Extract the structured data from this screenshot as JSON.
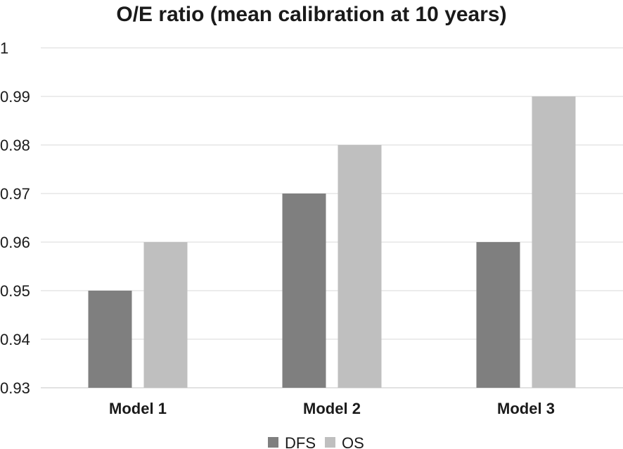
{
  "chart_data": {
    "type": "bar",
    "title": "O/E ratio (mean calibration at 10 years)",
    "xlabel": "",
    "ylabel": "",
    "categories": [
      "Model 1",
      "Model 2",
      "Model 3"
    ],
    "series": [
      {
        "name": "DFS",
        "values": [
          0.95,
          0.97,
          0.96
        ],
        "color": "#7f7f7f"
      },
      {
        "name": "OS",
        "values": [
          0.96,
          0.98,
          0.99
        ],
        "color": "#bfbfbf"
      }
    ],
    "ylim": [
      0.93,
      1.0
    ],
    "yticks": [
      0.93,
      0.94,
      0.95,
      0.96,
      0.97,
      0.98,
      0.99,
      1
    ],
    "ytick_labels": [
      "0.93",
      "0.94",
      "0.95",
      "0.96",
      "0.97",
      "0.98",
      "0.99",
      "1"
    ],
    "grid": true,
    "legend_position": "bottom"
  }
}
